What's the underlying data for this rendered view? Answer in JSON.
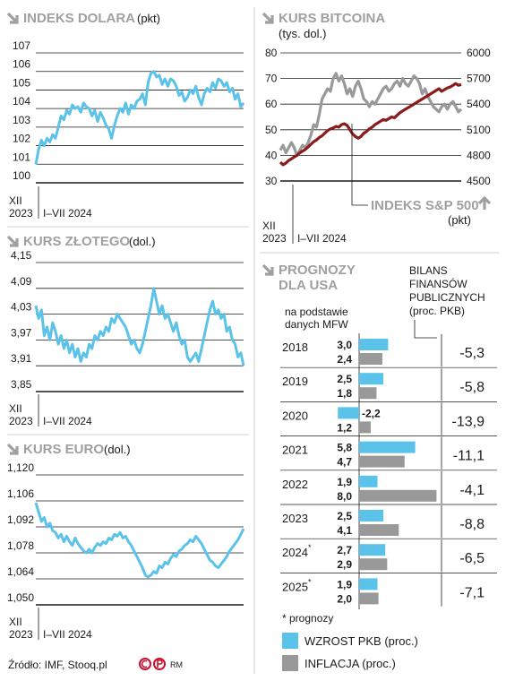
{
  "colors": {
    "blue": "#5bc2ea",
    "gray": "#999999",
    "darkred": "#8b1c1c",
    "header": "#a0a0a0"
  },
  "dollar_panel": {
    "title": "INDEKS DOLARA",
    "unit": "(pkt)",
    "period_start": "XII",
    "period_year": "2023",
    "period_range": "I–VII 2024"
  },
  "zloty_panel": {
    "title": "KURS ZŁOTEGO",
    "unit": "(dol.)",
    "period_start": "XII",
    "period_year": "2023",
    "period_range": "I–VII 2024"
  },
  "euro_panel": {
    "title": "KURS EURO",
    "unit": "(dol.)",
    "period_start": "XII",
    "period_year": "2023",
    "period_range": "I–VII 2024"
  },
  "bitcoin_panel": {
    "title": "KURS BITCOINA",
    "unit": "(tys. dol.)",
    "sp_title": "INDEKS S&P 500",
    "sp_unit": "(pkt)",
    "period_start": "XII",
    "period_year": "2023",
    "period_range": "I–VII 2024"
  },
  "forecast_panel": {
    "title_line1": "PROGNOZY",
    "title_line2": "DLA USA",
    "source_line1": "na podstawie",
    "source_line2": "danych MFW",
    "balance_line1": "BILANS",
    "balance_line2": "FINANSÓW",
    "balance_line3": "PUBLICZNYCH",
    "balance_line4": "(proc. PKB)",
    "footnote": "* prognozy",
    "legend_gdp": "WZROST PKB (proc.)",
    "legend_inflation": "INFLACJA (proc.)"
  },
  "footer": {
    "source": "Źródło: IMF, Stooq.pl",
    "logo_text": "RM"
  },
  "chart_data": [
    {
      "type": "line",
      "title": "INDEKS DOLARA",
      "ylabel": "(pkt)",
      "ylim": [
        100,
        107
      ],
      "yticks": [
        "107",
        "106",
        "105",
        "104",
        "103",
        "102",
        "101",
        "100"
      ],
      "grid": true,
      "series": [
        {
          "values": [
            101.0,
            101.8,
            102.3,
            102.0,
            102.4,
            102.2,
            102.6,
            102.4,
            103.0,
            103.6,
            103.4,
            103.9,
            103.7,
            104.2,
            104.0,
            104.1,
            103.8,
            104.3,
            104.1,
            104.0,
            103.6,
            103.9,
            103.3,
            103.8,
            103.5,
            103.1,
            102.9,
            102.4,
            103.1,
            103.6,
            104.0,
            103.8,
            104.3,
            103.7,
            104.2,
            104.0,
            104.4,
            104.5,
            104.8,
            104.2,
            105.4,
            105.9,
            106.0,
            105.7,
            105.8,
            105.3,
            105.6,
            105.2,
            105.6,
            105.5,
            105.2,
            104.7,
            104.9,
            104.4,
            104.6,
            105.0,
            104.8,
            105.2,
            104.6,
            104.2,
            104.8,
            105.1,
            104.9,
            105.4,
            105.1,
            105.6,
            105.5,
            105.2,
            105.4,
            104.9,
            105.1,
            104.5,
            104.8,
            104.1,
            104.3
          ]
        }
      ]
    },
    {
      "type": "line",
      "title": "KURS ZŁOTEGO",
      "ylabel": "(dol.)",
      "ylim": [
        3.85,
        4.15
      ],
      "yticks": [
        "4,15",
        "4,09",
        "4,03",
        "3,97",
        "3,91",
        "3,85"
      ],
      "grid": true,
      "series": [
        {
          "values": [
            4.05,
            4.02,
            4.04,
            3.98,
            4.0,
            3.97,
            4.01,
            3.99,
            3.96,
            3.98,
            3.95,
            3.97,
            3.94,
            3.96,
            3.93,
            3.95,
            3.92,
            3.94,
            3.93,
            3.96,
            3.95,
            3.98,
            3.97,
            3.99,
            3.98,
            4.0,
            3.99,
            4.02,
            4.01,
            4.03,
            4.02,
            4.01,
            4.0,
            3.98,
            3.96,
            3.97,
            3.95,
            3.94,
            3.96,
            3.99,
            4.02,
            4.05,
            4.09,
            4.06,
            4.03,
            4.05,
            4.02,
            4.03,
            4.01,
            3.99,
            4.01,
            3.98,
            3.96,
            3.97,
            3.93,
            3.92,
            3.93,
            3.94,
            3.92,
            3.95,
            3.98,
            4.01,
            4.04,
            4.06,
            4.03,
            4.04,
            4.02,
            4.03,
            3.99,
            4.0,
            3.97,
            3.96,
            3.93,
            3.94,
            3.91
          ]
        }
      ]
    },
    {
      "type": "line",
      "title": "KURS EURO",
      "ylabel": "(dol.)",
      "ylim": [
        1.05,
        1.12
      ],
      "yticks": [
        "1,120",
        "1,106",
        "1,092",
        "1,078",
        "1,064",
        "1,050"
      ],
      "grid": true,
      "series": [
        {
          "values": [
            1.105,
            1.1,
            1.095,
            1.097,
            1.092,
            1.094,
            1.09,
            1.089,
            1.086,
            1.088,
            1.084,
            1.087,
            1.084,
            1.082,
            1.086,
            1.083,
            1.081,
            1.079,
            1.078,
            1.08,
            1.078,
            1.081,
            1.083,
            1.082,
            1.084,
            1.083,
            1.086,
            1.085,
            1.088,
            1.087,
            1.089,
            1.086,
            1.087,
            1.084,
            1.082,
            1.079,
            1.076,
            1.073,
            1.07,
            1.066,
            1.065,
            1.066,
            1.068,
            1.067,
            1.071,
            1.07,
            1.073,
            1.072,
            1.075,
            1.077,
            1.076,
            1.079,
            1.08,
            1.082,
            1.083,
            1.085,
            1.084,
            1.087,
            1.085,
            1.083,
            1.08,
            1.077,
            1.074,
            1.073,
            1.071,
            1.07,
            1.072,
            1.074,
            1.076,
            1.079,
            1.081,
            1.083,
            1.085,
            1.088,
            1.091
          ]
        }
      ]
    },
    {
      "type": "line",
      "title": "KURS BITCOINA",
      "ylabel": "(tys. dol.)",
      "ylim": [
        30,
        80
      ],
      "yticks_left": [
        "80",
        "70",
        "60",
        "50",
        "40",
        "30"
      ],
      "yticks_right": [
        "6000",
        "5700",
        "5400",
        "5100",
        "4800",
        "4500"
      ],
      "grid": true,
      "series": [
        {
          "name": "KURS BITCOINA",
          "axis": "left",
          "values": [
            42,
            44,
            41,
            43,
            45,
            43,
            40,
            42,
            44,
            43,
            45,
            48,
            52,
            51,
            56,
            62,
            64,
            66,
            65,
            70,
            72,
            69,
            71,
            68,
            64,
            66,
            63,
            67,
            69,
            66,
            62,
            61,
            59,
            61,
            60,
            62,
            64,
            66,
            67,
            65,
            66,
            68,
            69,
            67,
            70,
            68,
            67,
            69,
            71,
            70,
            68,
            64,
            66,
            63,
            61,
            59,
            58,
            57,
            59,
            60,
            58,
            60,
            61,
            59,
            57,
            58
          ]
        },
        {
          "name": "INDEKS S&P 500",
          "axis": "right",
          "values": [
            4720,
            4690,
            4710,
            4740,
            4760,
            4780,
            4800,
            4830,
            4850,
            4870,
            4900,
            4930,
            4960,
            4980,
            5010,
            5030,
            5060,
            5090,
            5110,
            5120,
            5140,
            5130,
            5160,
            5170,
            5150,
            5100,
            5050,
            5020,
            5000,
            5020,
            5060,
            5080,
            5110,
            5130,
            5160,
            5180,
            5200,
            5220,
            5210,
            5230,
            5250,
            5240,
            5270,
            5300,
            5320,
            5340,
            5360,
            5380,
            5400,
            5420,
            5440,
            5460,
            5480,
            5500,
            5520,
            5540,
            5560,
            5580,
            5550,
            5570,
            5590,
            5600,
            5620,
            5640,
            5620,
            5630
          ]
        }
      ]
    },
    {
      "type": "table",
      "title": "PROGNOZY DLA USA",
      "columns": [
        "year",
        "gdp_growth",
        "inflation",
        "balance"
      ],
      "rows": [
        {
          "year": "2018",
          "gdp": 3.0,
          "gdp_label": "3,0",
          "inflation": 2.4,
          "inflation_label": "2,4",
          "balance": "-5,3",
          "forecast": false
        },
        {
          "year": "2019",
          "gdp": 2.5,
          "gdp_label": "2,5",
          "inflation": 1.8,
          "inflation_label": "1,8",
          "balance": "-5,8",
          "forecast": false
        },
        {
          "year": "2020",
          "gdp": -2.2,
          "gdp_label": "-2,2",
          "inflation": 1.2,
          "inflation_label": "1,2",
          "balance": "-13,9",
          "forecast": false
        },
        {
          "year": "2021",
          "gdp": 5.8,
          "gdp_label": "5,8",
          "inflation": 4.7,
          "inflation_label": "4,7",
          "balance": "-11,1",
          "forecast": false
        },
        {
          "year": "2022",
          "gdp": 1.9,
          "gdp_label": "1,9",
          "inflation": 8.0,
          "inflation_label": "8,0",
          "balance": "-4,1",
          "forecast": false
        },
        {
          "year": "2023",
          "gdp": 2.5,
          "gdp_label": "2,5",
          "inflation": 4.1,
          "inflation_label": "4,1",
          "balance": "-8,8",
          "forecast": false
        },
        {
          "year": "2024",
          "gdp": 2.7,
          "gdp_label": "2,7",
          "inflation": 2.9,
          "inflation_label": "2,9",
          "balance": "-6,5",
          "forecast": true
        },
        {
          "year": "2025",
          "gdp": 1.9,
          "gdp_label": "1,9",
          "inflation": 2.0,
          "inflation_label": "2,0",
          "balance": "-7,1",
          "forecast": true
        }
      ],
      "legend": [
        "WZROST PKB (proc.)",
        "INFLACJA (proc.)"
      ]
    }
  ]
}
